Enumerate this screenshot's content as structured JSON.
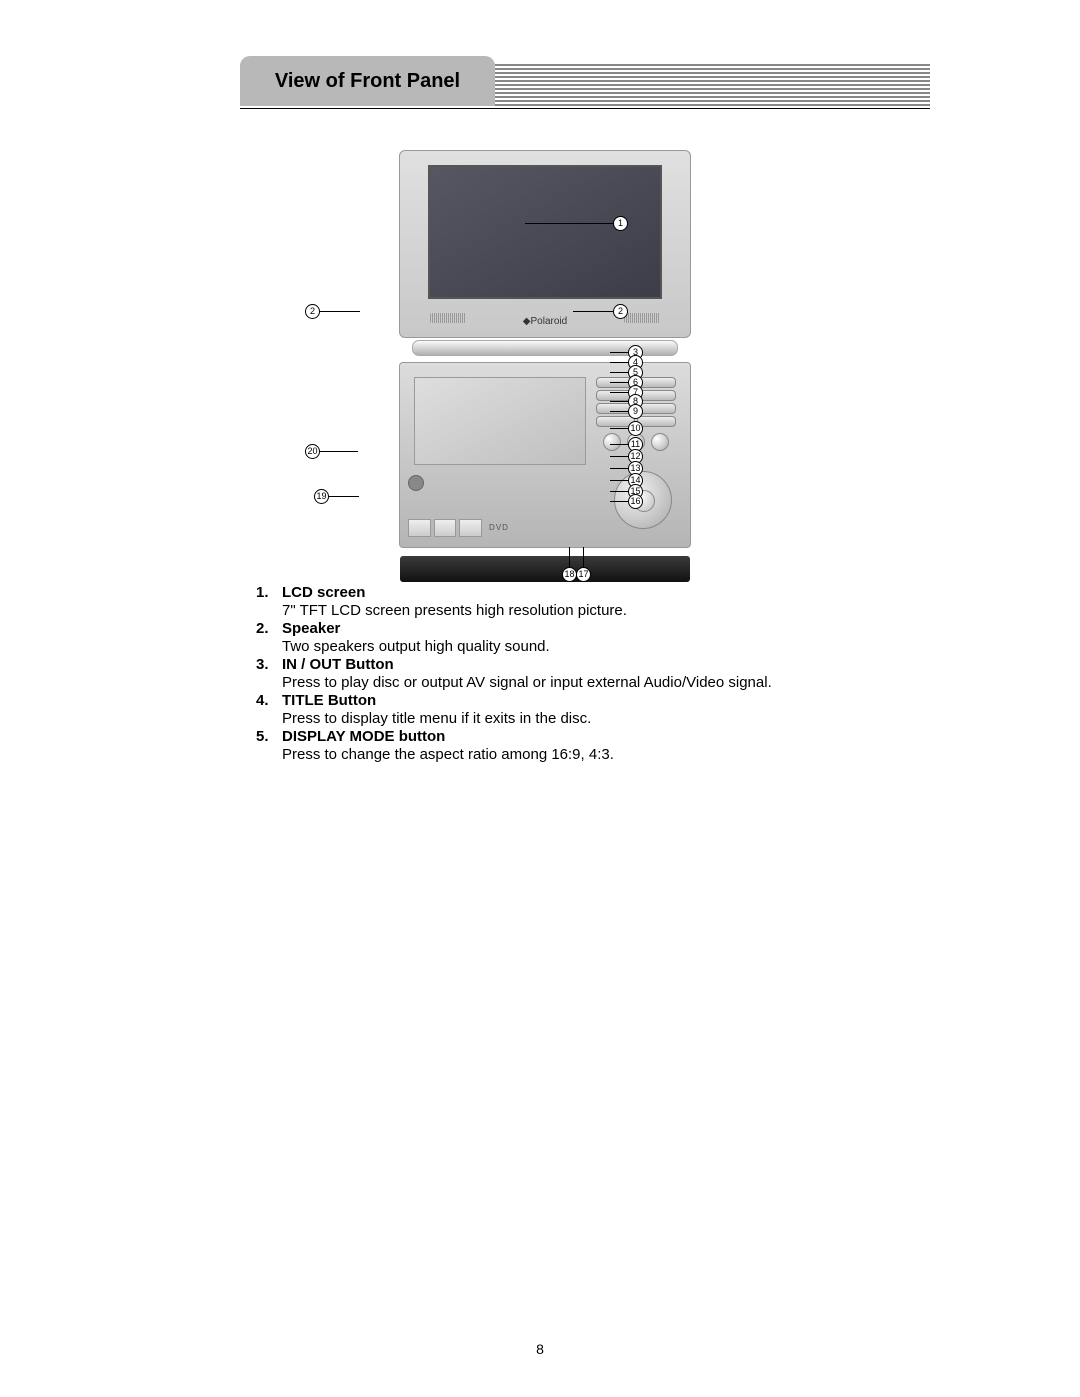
{
  "header": {
    "title": "View of Front Panel"
  },
  "brand": "◆Polaroid",
  "dvd_label": "DVD",
  "callouts": {
    "c1": "1",
    "c2l": "2",
    "c2r": "2",
    "c3": "3",
    "c4": "4",
    "c5": "5",
    "c6": "6",
    "c7": "7",
    "c8": "8",
    "c9": "9",
    "c10": "10",
    "c11": "11",
    "c12": "12",
    "c13": "13",
    "c14": "14",
    "c15": "15",
    "c16": "16",
    "c17": "17",
    "c18": "18",
    "c19": "19",
    "c20": "20"
  },
  "items": [
    {
      "num": "1.",
      "title": "LCD screen",
      "desc": "7\" TFT LCD screen presents high resolution picture."
    },
    {
      "num": "2.",
      "title": "Speaker",
      "desc": "Two speakers output high quality sound."
    },
    {
      "num": "3.",
      "title": "IN / OUT Button",
      "desc": "Press to play disc or output AV signal or input external Audio/Video signal."
    },
    {
      "num": "4.",
      "title": "TITLE Button",
      "desc": "Press to display title menu if it exits in the disc."
    },
    {
      "num": "5.",
      "title": "DISPLAY MODE button",
      "desc": "Press to change the aspect ratio among 16:9, 4:3."
    }
  ],
  "page_number": "8",
  "style": {
    "title_tab_bg": "#b8b8b8",
    "text_color": "#000000",
    "page_bg": "#ffffff",
    "font_size_body": 15,
    "font_size_title": 20
  }
}
